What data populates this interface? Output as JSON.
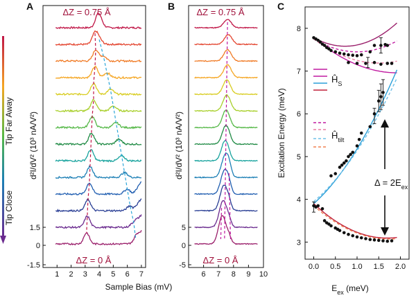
{
  "chart_data": [
    {
      "panel": "A",
      "type": "line",
      "xlabel": "Sample Bias (mV)",
      "ylabel": "d²I/dV² (10³ nA/V²)",
      "xlim": [
        0,
        7.3
      ],
      "xticks": [
        "1",
        "2",
        "3",
        "4",
        "5",
        "6",
        "7"
      ],
      "yticks": [
        "-1.5",
        "0",
        "1.5"
      ],
      "side_label_top": "Tip Far Away",
      "side_label_bottom": "Tip Close",
      "dz_top": "ΔZ = 0.75 Å",
      "dz_bottom": "ΔZ = 0 Å",
      "n_spectra": 14,
      "peak_left_mV": [
        3.9,
        3.7,
        3.75,
        3.7,
        3.6,
        3.6,
        3.5,
        3.45,
        3.4,
        3.35,
        3.3,
        3.2,
        3.15,
        3.1
      ],
      "peak_right_mV": [
        4.1,
        4.0,
        4.3,
        4.55,
        4.8,
        5.0,
        5.2,
        5.4,
        5.6,
        5.8,
        6.0,
        6.2,
        6.45,
        6.6
      ],
      "colors": [
        "#c01546",
        "#e3432d",
        "#f07a24",
        "#f5a623",
        "#d8cc1f",
        "#a8cf2a",
        "#55b847",
        "#1f8a44",
        "#18a39e",
        "#1c7fb5",
        "#1f5db0",
        "#2a3f95",
        "#6a2a8e",
        "#9a1f6b"
      ]
    },
    {
      "panel": "B",
      "type": "line",
      "xlabel": "",
      "ylabel": "d²I/dV² (10³ nA/V²)",
      "xlim": [
        5,
        10
      ],
      "xticks": [
        "6",
        "7",
        "8",
        "9",
        "10"
      ],
      "yticks": [
        "-5",
        "0",
        "5"
      ],
      "dz_top": "ΔZ = 0.75 Å",
      "dz_bottom": "ΔZ = 0 Å",
      "n_spectra": 14,
      "peak_mV": [
        7.6,
        7.65,
        7.6,
        7.6,
        7.55,
        7.55,
        7.5,
        7.5,
        7.45,
        7.45,
        7.4,
        7.35,
        7.3,
        7.25
      ],
      "peak_mV_second": [
        7.8,
        7.8,
        7.8,
        7.8,
        7.8,
        7.75,
        7.7,
        7.7,
        7.7,
        7.7,
        7.7,
        7.7,
        7.7,
        7.7
      ]
    },
    {
      "panel": "C",
      "type": "scatter",
      "xlabel": "E_ex (meV)",
      "ylabel": "Excitation Energy (meV)",
      "xlim": [
        -0.2,
        2.2
      ],
      "ylim": [
        2.6,
        8.5
      ],
      "xticks": [
        0.0,
        0.5,
        1.0,
        1.5,
        2.0
      ],
      "yticks": [
        3,
        4,
        5,
        6,
        7,
        8
      ],
      "legend_hs": "Ĥ_s",
      "legend_htilt": "Ĥ_tilt",
      "annotation": "Δ = 2E_ex",
      "series": [
        {
          "name": "upper",
          "points": [
            [
              0.0,
              7.78
            ],
            [
              0.05,
              7.75
            ],
            [
              0.1,
              7.72
            ],
            [
              0.15,
              7.68
            ],
            [
              0.2,
              7.63
            ],
            [
              0.25,
              7.6
            ],
            [
              0.3,
              7.55
            ],
            [
              0.35,
              7.52
            ],
            [
              0.4,
              7.48
            ],
            [
              0.5,
              7.45
            ],
            [
              0.6,
              7.42
            ],
            [
              0.7,
              7.4
            ],
            [
              0.8,
              7.38
            ],
            [
              0.9,
              7.37
            ],
            [
              1.0,
              7.36
            ],
            [
              1.1,
              7.38
            ],
            [
              1.3,
              7.45
            ],
            [
              1.4,
              7.6
            ],
            [
              1.55,
              7.6
            ],
            [
              1.65,
              7.62
            ],
            [
              1.7,
              7.6
            ]
          ]
        },
        {
          "name": "middle",
          "points": [
            [
              0.8,
              7.2
            ],
            [
              1.0,
              7.18
            ],
            [
              1.2,
              7.18
            ],
            [
              1.4,
              7.2
            ],
            [
              1.55,
              7.16
            ],
            [
              1.7,
              7.18
            ],
            [
              1.8,
              7.18
            ]
          ]
        },
        {
          "name": "rising",
          "points": [
            [
              0.4,
              4.55
            ],
            [
              0.5,
              4.6
            ],
            [
              0.6,
              4.75
            ],
            [
              0.65,
              4.8
            ],
            [
              0.7,
              4.85
            ],
            [
              0.75,
              4.9
            ],
            [
              0.8,
              5.0
            ],
            [
              0.85,
              5.05
            ],
            [
              0.9,
              5.1
            ],
            [
              1.0,
              5.25
            ],
            [
              1.05,
              5.4
            ],
            [
              1.1,
              5.55
            ],
            [
              1.3,
              5.7
            ],
            [
              1.4,
              6.0
            ],
            [
              1.5,
              6.3
            ],
            [
              1.55,
              6.4
            ],
            [
              1.6,
              6.5
            ]
          ]
        },
        {
          "name": "lower",
          "points": [
            [
              0.0,
              3.85
            ],
            [
              0.05,
              3.82
            ],
            [
              0.1,
              3.85
            ],
            [
              0.2,
              3.78
            ],
            [
              0.25,
              3.5
            ],
            [
              0.3,
              3.45
            ],
            [
              0.35,
              3.42
            ],
            [
              0.4,
              3.38
            ],
            [
              0.5,
              3.33
            ],
            [
              0.55,
              3.3
            ],
            [
              0.6,
              3.27
            ],
            [
              0.7,
              3.22
            ],
            [
              0.8,
              3.18
            ],
            [
              0.9,
              3.15
            ],
            [
              1.0,
              3.12
            ],
            [
              1.1,
              3.1
            ],
            [
              1.2,
              3.08
            ],
            [
              1.3,
              3.06
            ],
            [
              1.4,
              3.05
            ],
            [
              1.5,
              3.04
            ],
            [
              1.6,
              3.03
            ],
            [
              1.7,
              3.02
            ],
            [
              1.8,
              3.03
            ]
          ]
        }
      ]
    }
  ]
}
